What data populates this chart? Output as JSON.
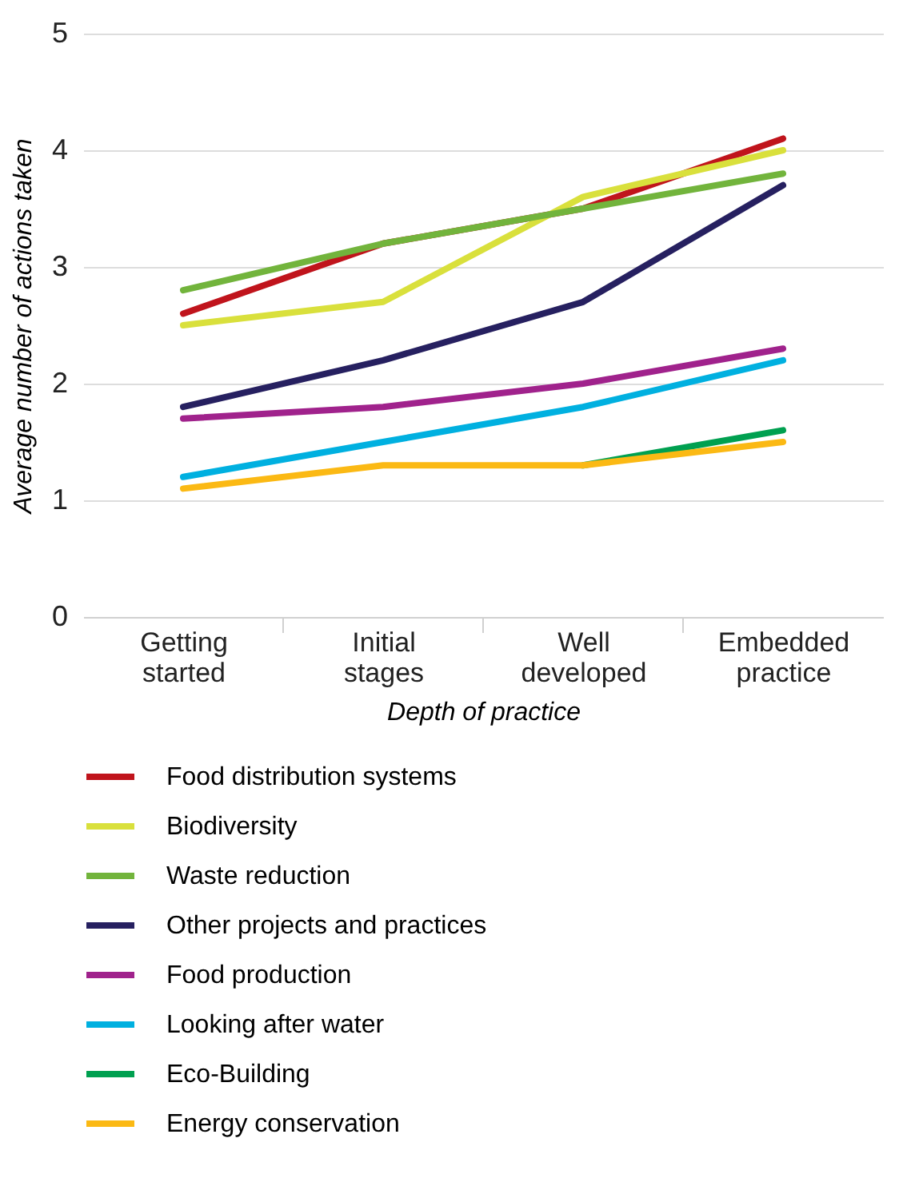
{
  "chart_data": {
    "type": "line",
    "xlabel": "Depth of practice",
    "ylabel": "Average number of actions taken",
    "categories": [
      "Getting started",
      "Initial stages",
      "Well developed",
      "Embedded practice"
    ],
    "ylim": [
      0,
      5
    ],
    "yticks": [
      0,
      1,
      2,
      3,
      4,
      5
    ],
    "grid": "y",
    "legend": "bottom",
    "marker": "none",
    "line_style": "solid",
    "series": [
      {
        "name": "Food distribution systems",
        "color": "#c0141c",
        "values": [
          2.6,
          3.2,
          3.5,
          4.1
        ]
      },
      {
        "name": "Biodiversity",
        "color": "#d9e03c",
        "values": [
          2.5,
          2.7,
          3.6,
          4.0
        ]
      },
      {
        "name": "Waste reduction",
        "color": "#72b43c",
        "values": [
          2.8,
          3.2,
          3.5,
          3.8
        ]
      },
      {
        "name": "Other projects and practices",
        "color": "#262060",
        "values": [
          1.8,
          2.2,
          2.7,
          3.7
        ]
      },
      {
        "name": "Food production",
        "color": "#a0228c",
        "values": [
          1.7,
          1.8,
          2.0,
          2.3
        ]
      },
      {
        "name": "Looking after water",
        "color": "#00b0e0",
        "values": [
          1.2,
          1.5,
          1.8,
          2.2
        ]
      },
      {
        "name": "Eco-Building",
        "color": "#00a050",
        "values": [
          null,
          null,
          1.3,
          1.6
        ]
      },
      {
        "name": "Energy conservation",
        "color": "#fbb914",
        "values": [
          1.1,
          1.3,
          1.3,
          1.5
        ]
      }
    ]
  }
}
